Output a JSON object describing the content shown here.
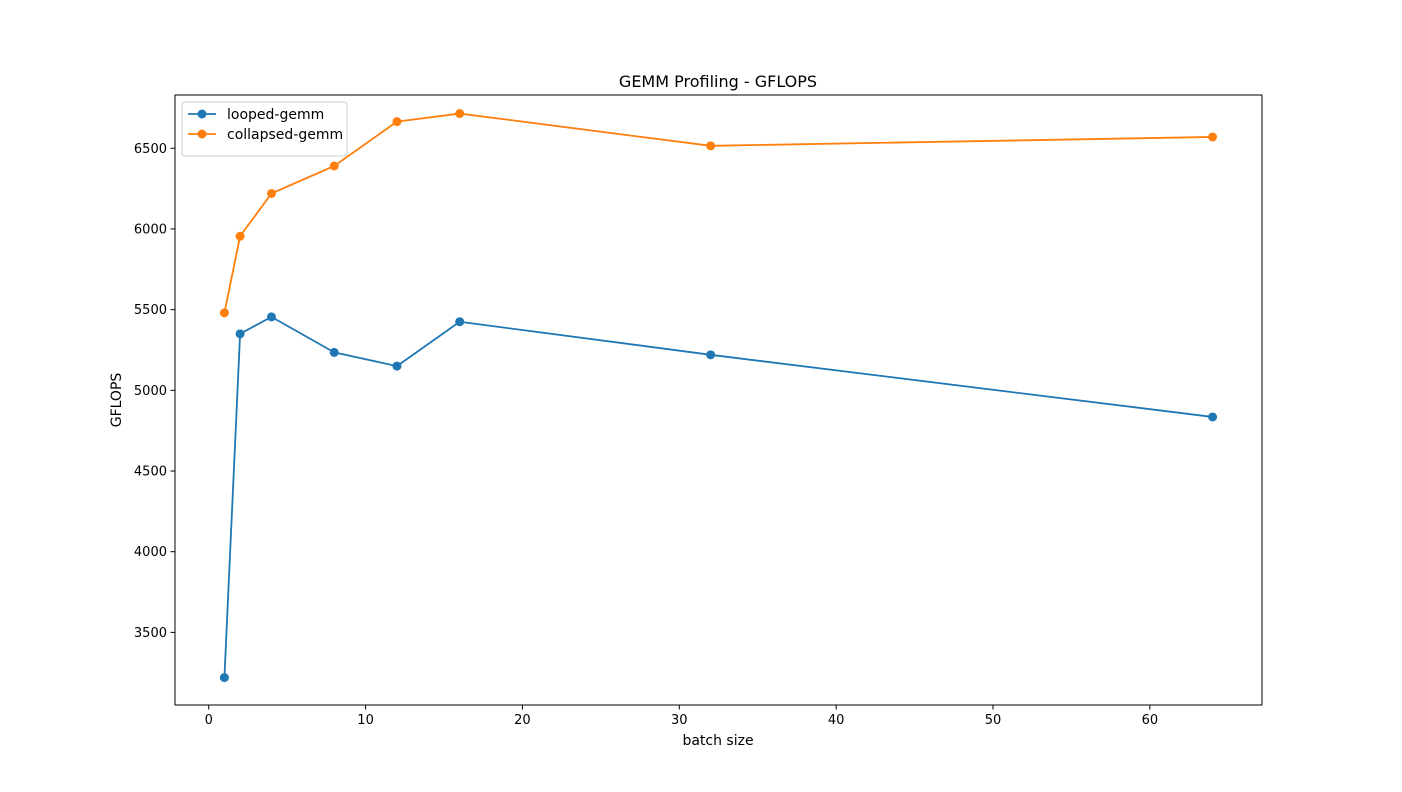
{
  "chart_data": {
    "type": "line",
    "title": "GEMM Profiling - GFLOPS",
    "xlabel": "batch size",
    "ylabel": "GFLOPS",
    "xlim": [
      -2.15,
      67.15
    ],
    "ylim": [
      3050,
      6830
    ],
    "xticks": [
      0,
      10,
      20,
      30,
      40,
      50,
      60
    ],
    "yticks": [
      3500,
      4000,
      4500,
      5000,
      5500,
      6000,
      6500
    ],
    "grid": false,
    "legend_position": "upper-left",
    "x": [
      1,
      2,
      4,
      8,
      12,
      16,
      32,
      64
    ],
    "series": [
      {
        "name": "looped-gemm",
        "color": "#1f77b4",
        "marker": "circle",
        "values": [
          3220,
          5350,
          5455,
          5235,
          5150,
          5425,
          5220,
          4835
        ]
      },
      {
        "name": "collapsed-gemm",
        "color": "#ff7f0e",
        "marker": "circle",
        "values": [
          5480,
          5955,
          6220,
          6390,
          6665,
          6715,
          6515,
          6570
        ]
      }
    ]
  }
}
